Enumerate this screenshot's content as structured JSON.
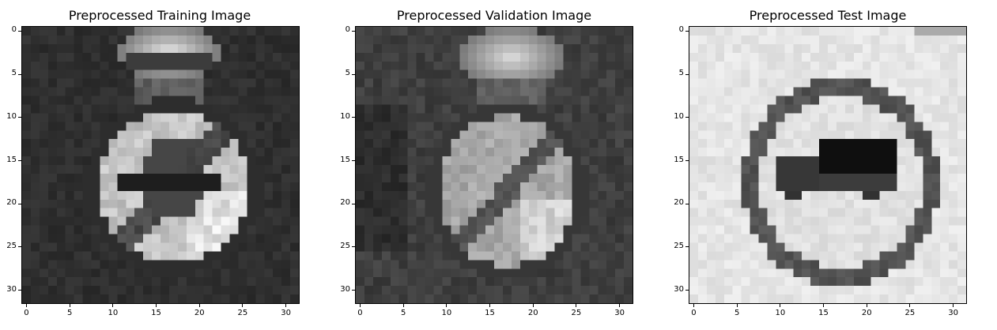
{
  "figure": {
    "panels": [
      {
        "title": "Preprocessed Training Image",
        "image_semantic": "grayscale traffic sign: end of speed limit / no overtaking round sign",
        "tone": "dark"
      },
      {
        "title": "Preprocessed Validation Image",
        "image_semantic": "grayscale traffic sign: end of speed limit round sign",
        "tone": "dark"
      },
      {
        "title": "Preprocessed Test Image",
        "image_semantic": "grayscale traffic sign: no trucks round sign",
        "tone": "light"
      }
    ],
    "axis": {
      "x_ticks": [
        "0",
        "5",
        "10",
        "15",
        "20",
        "25",
        "30"
      ],
      "y_ticks": [
        "0",
        "5",
        "10",
        "15",
        "20",
        "25",
        "30"
      ],
      "range": [
        0,
        31
      ]
    }
  }
}
